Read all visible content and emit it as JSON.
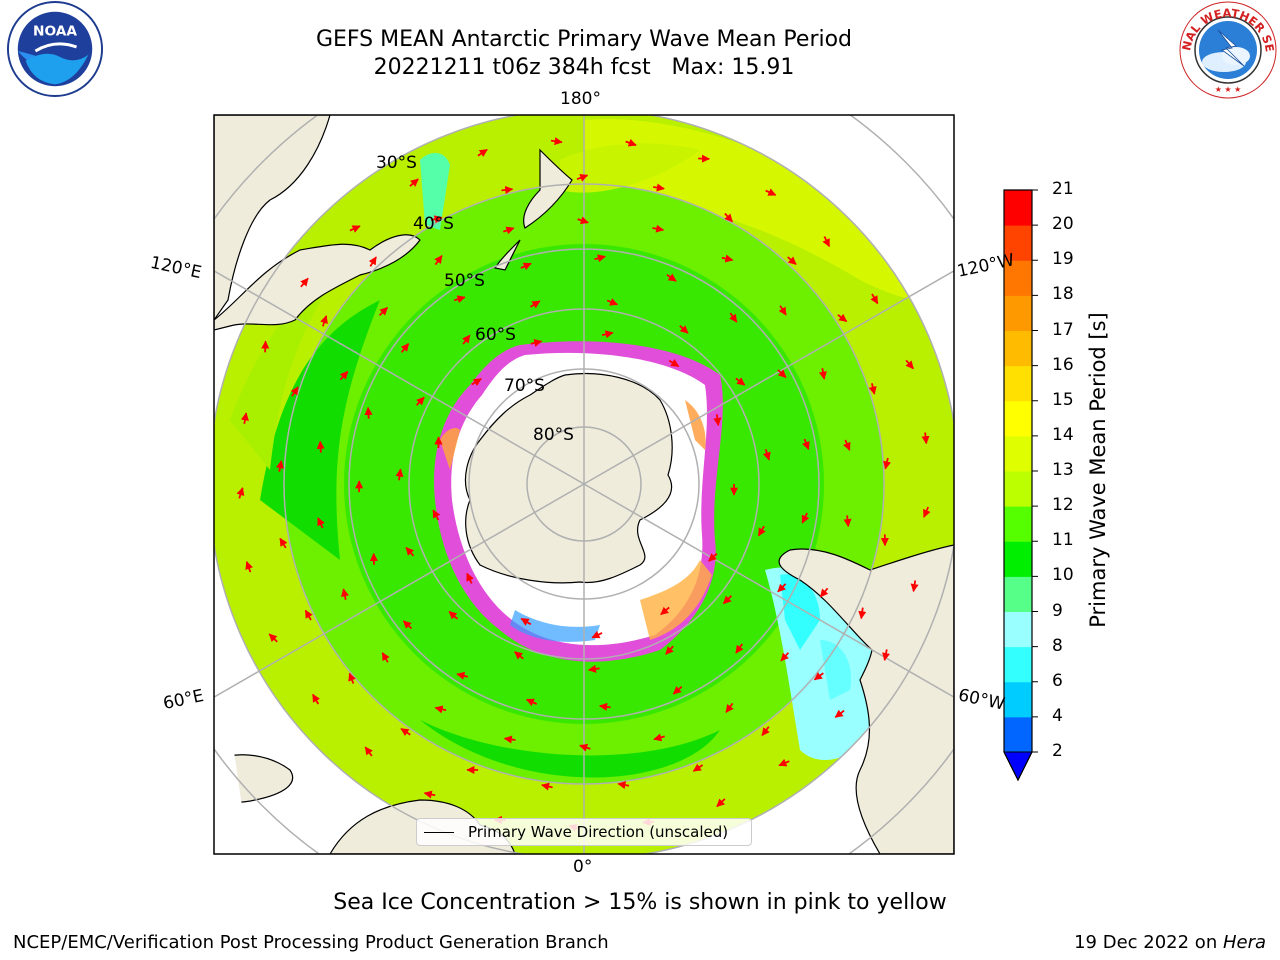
{
  "header": {
    "title_line1": "GEFS MEAN Antarctic Primary Wave Mean Period",
    "title_line2": "20221211 t06z 384h fcst   Max: 15.91"
  },
  "logos": {
    "left": "noaa-logo",
    "left_text": "NOAA",
    "left_ring_text": "NATIONAL OCEANIC AND ATMOSPHERIC ADMINISTRATION · U.S. DEPARTMENT OF COMMERCE",
    "right": "nws-logo",
    "right_ring_text": "NATIONAL WEATHER SERVICE"
  },
  "map": {
    "projection": "south-polar-stereographic",
    "longitude_labels": {
      "top": "180°",
      "bottom": "0°",
      "upper_left": "120°E",
      "lower_left": "60°E",
      "upper_right": "120°W",
      "lower_right": "60°W"
    },
    "latitude_labels": [
      "30°S",
      "40°S",
      "50°S",
      "60°S",
      "70°S",
      "80°S"
    ],
    "legend": "Primary Wave Direction (unscaled)",
    "colors": {
      "land": "#efecdc",
      "sea_ice": "#ffffff",
      "ice_edge": "#ff33ff",
      "arrows": "#ff0000"
    }
  },
  "colorbar": {
    "label": "Primary Wave Mean Period [s]",
    "ticks": [
      "2",
      "4",
      "6",
      "8",
      "9",
      "10",
      "11",
      "12",
      "13",
      "14",
      "15",
      "16",
      "17",
      "18",
      "19",
      "20",
      "21"
    ],
    "colors": [
      "#0066ff",
      "#00ccff",
      "#33ffff",
      "#99ffff",
      "#55ff88",
      "#00ee00",
      "#55ff00",
      "#bbff00",
      "#dfff00",
      "#ffff00",
      "#ffe000",
      "#ffbb00",
      "#ff9900",
      "#ff7700",
      "#ff4400",
      "#ff0000"
    ],
    "extend_color": "#0000ff"
  },
  "caption": "Sea Ice Concentration > 15% is shown in pink to yellow",
  "footer": {
    "left": "NCEP/EMC/Verification Post Processing Product Generation Branch",
    "right_date": "19 Dec 2022 on ",
    "right_host": "Hera"
  }
}
